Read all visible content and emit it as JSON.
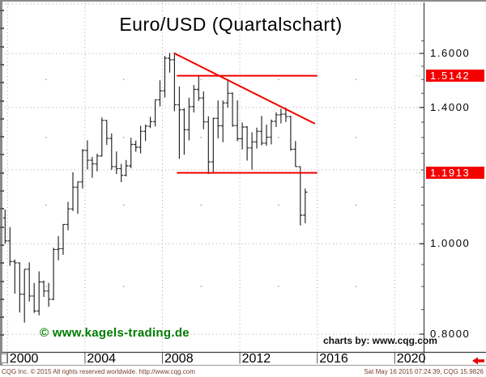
{
  "title": "Euro/USD (Quartalschart)",
  "watermark": "© www.kagels-trading.de",
  "credit": "charts by: www.cqg.com",
  "footer": {
    "left": "CQG Inc. © 2015 All rights reserved worldwide. http://www.cqg.com",
    "right": "Sat May 16 2015 07:24:39, CQG 15.9826"
  },
  "colors": {
    "annotation_red": "#f40000",
    "badge_bg": "#f40000",
    "badge_text": "#ffffff",
    "bar": "#222222",
    "grid": "#a6a6a6",
    "axis": "#3c3c3c",
    "watermark_green": "#007c00"
  },
  "y_axis": {
    "scale": "log",
    "labels": [
      {
        "price": 1.6,
        "text": "1.6000"
      },
      {
        "price": 1.4,
        "text": "1.4000"
      },
      {
        "price": 1.0,
        "text": "1.0000"
      },
      {
        "price": 0.8,
        "text": "0.8000"
      }
    ],
    "badges": [
      {
        "price": 1.5142,
        "text": "1.5142"
      },
      {
        "price": 1.1913,
        "text": "1.1913"
      }
    ]
  },
  "x_axis": {
    "labels": [
      {
        "year": 2000,
        "text": "2000"
      },
      {
        "year": 2004,
        "text": "2004"
      },
      {
        "year": 2008,
        "text": "2008"
      },
      {
        "year": 2012,
        "text": "2012"
      },
      {
        "year": 2016,
        "text": "2016"
      },
      {
        "year": 2020,
        "text": "2020"
      }
    ]
  },
  "grid": {
    "h_levels": [
      1.6,
      1.4,
      1.2,
      1.0,
      0.8
    ],
    "v_years": [
      2000,
      2004,
      2008,
      2012,
      2016,
      2020
    ],
    "minor_dot_levels": [
      1.5,
      1.3,
      1.1,
      0.9
    ],
    "minor_dot_years": [
      2002,
      2006,
      2010,
      2014,
      2018
    ]
  },
  "chart_data": {
    "type": "bar",
    "subtype": "ohlc",
    "title": "Euro/USD (Quartalschart)",
    "instrument": "Euro/USD",
    "periodicity": "quarterly",
    "y_scale": "log",
    "ylim": [
      0.78,
      1.67
    ],
    "xlim": [
      "1999Q3",
      "2020Q4"
    ],
    "legend": "none",
    "columns": [
      "quarter",
      "open",
      "high",
      "low",
      "close"
    ],
    "bars": [
      [
        "1999Q3",
        1.032,
        1.079,
        1.011,
        1.066
      ],
      [
        "1999Q4",
        1.066,
        1.088,
        1.0,
        1.007
      ],
      [
        "2000Q1",
        1.007,
        1.042,
        0.947,
        0.957
      ],
      [
        "2000Q2",
        0.957,
        0.962,
        0.884,
        0.954
      ],
      [
        "2000Q3",
        0.954,
        0.955,
        0.844,
        0.883
      ],
      [
        "2000Q4",
        0.883,
        0.939,
        0.823,
        0.939
      ],
      [
        "2001Q1",
        0.939,
        0.955,
        0.867,
        0.879
      ],
      [
        "2001Q2",
        0.879,
        0.908,
        0.843,
        0.847
      ],
      [
        "2001Q3",
        0.847,
        0.934,
        0.838,
        0.91
      ],
      [
        "2001Q4",
        0.91,
        0.913,
        0.877,
        0.89
      ],
      [
        "2002Q1",
        0.89,
        0.908,
        0.856,
        0.872
      ],
      [
        "2002Q2",
        0.872,
        0.99,
        0.87,
        0.986
      ],
      [
        "2002Q3",
        0.986,
        1.019,
        0.96,
        0.988
      ],
      [
        "2002Q4",
        0.988,
        1.05,
        0.973,
        1.049
      ],
      [
        "2003Q1",
        1.049,
        1.109,
        1.034,
        1.09
      ],
      [
        "2003Q2",
        1.09,
        1.193,
        1.084,
        1.15
      ],
      [
        "2003Q3",
        1.15,
        1.166,
        1.077,
        1.165
      ],
      [
        "2003Q4",
        1.165,
        1.263,
        1.146,
        1.259
      ],
      [
        "2004Q1",
        1.259,
        1.291,
        1.201,
        1.229
      ],
      [
        "2004Q2",
        1.229,
        1.239,
        1.177,
        1.218
      ],
      [
        "2004Q3",
        1.218,
        1.249,
        1.196,
        1.242
      ],
      [
        "2004Q4",
        1.242,
        1.366,
        1.24,
        1.356
      ],
      [
        "2005Q1",
        1.356,
        1.357,
        1.276,
        1.297
      ],
      [
        "2005Q2",
        1.297,
        1.313,
        1.2,
        1.21
      ],
      [
        "2005Q3",
        1.21,
        1.256,
        1.188,
        1.204
      ],
      [
        "2005Q4",
        1.204,
        1.218,
        1.164,
        1.184
      ],
      [
        "2006Q1",
        1.184,
        1.23,
        1.181,
        1.212
      ],
      [
        "2006Q2",
        1.212,
        1.299,
        1.205,
        1.278
      ],
      [
        "2006Q3",
        1.278,
        1.29,
        1.255,
        1.269
      ],
      [
        "2006Q4",
        1.269,
        1.338,
        1.25,
        1.32
      ],
      [
        "2007Q1",
        1.32,
        1.342,
        1.289,
        1.337
      ],
      [
        "2007Q2",
        1.337,
        1.368,
        1.331,
        1.352
      ],
      [
        "2007Q3",
        1.352,
        1.427,
        1.336,
        1.427
      ],
      [
        "2007Q4",
        1.427,
        1.497,
        1.404,
        1.459
      ],
      [
        "2008Q1",
        1.459,
        1.59,
        1.435,
        1.581
      ],
      [
        "2008Q2",
        1.581,
        1.602,
        1.526,
        1.575
      ],
      [
        "2008Q3",
        1.575,
        1.604,
        1.387,
        1.409
      ],
      [
        "2008Q4",
        1.409,
        1.475,
        1.233,
        1.392
      ],
      [
        "2009Q1",
        1.392,
        1.397,
        1.246,
        1.325
      ],
      [
        "2009Q2",
        1.325,
        1.434,
        1.291,
        1.403
      ],
      [
        "2009Q3",
        1.403,
        1.48,
        1.383,
        1.464
      ],
      [
        "2009Q4",
        1.464,
        1.514,
        1.423,
        1.433
      ],
      [
        "2010Q1",
        1.433,
        1.457,
        1.327,
        1.351
      ],
      [
        "2010Q2",
        1.351,
        1.37,
        1.188,
        1.224
      ],
      [
        "2010Q3",
        1.224,
        1.365,
        1.193,
        1.363
      ],
      [
        "2010Q4",
        1.363,
        1.424,
        1.297,
        1.338
      ],
      [
        "2011Q1",
        1.338,
        1.424,
        1.285,
        1.416
      ],
      [
        "2011Q2",
        1.416,
        1.494,
        1.399,
        1.45
      ],
      [
        "2011Q3",
        1.45,
        1.453,
        1.335,
        1.339
      ],
      [
        "2011Q4",
        1.339,
        1.425,
        1.288,
        1.296
      ],
      [
        "2012Q1",
        1.296,
        1.349,
        1.262,
        1.334
      ],
      [
        "2012Q2",
        1.334,
        1.337,
        1.228,
        1.267
      ],
      [
        "2012Q3",
        1.267,
        1.317,
        1.201,
        1.286
      ],
      [
        "2012Q4",
        1.286,
        1.332,
        1.265,
        1.32
      ],
      [
        "2013Q1",
        1.32,
        1.371,
        1.275,
        1.282
      ],
      [
        "2013Q2",
        1.282,
        1.342,
        1.274,
        1.301
      ],
      [
        "2013Q3",
        1.301,
        1.359,
        1.278,
        1.353
      ],
      [
        "2013Q4",
        1.353,
        1.383,
        1.334,
        1.375
      ],
      [
        "2014Q1",
        1.375,
        1.396,
        1.346,
        1.377
      ],
      [
        "2014Q2",
        1.377,
        1.399,
        1.351,
        1.369
      ],
      [
        "2014Q3",
        1.369,
        1.371,
        1.258,
        1.263
      ],
      [
        "2014Q4",
        1.263,
        1.289,
        1.21,
        1.21
      ],
      [
        "2015Q1",
        1.21,
        1.21,
        1.046,
        1.073
      ],
      [
        "2015Q2",
        1.073,
        1.146,
        1.052,
        1.136
      ]
    ],
    "annotations": [
      {
        "type": "trendline",
        "color": "#f40000",
        "from": {
          "quarter": "2008Q3",
          "price": 1.6
        },
        "to": {
          "quarter": "2015Q4",
          "price": 1.345
        }
      },
      {
        "type": "hline",
        "color": "#f40000",
        "price": 1.5142,
        "from": "2008Q4",
        "to": "2016Q1",
        "label": "1.5142"
      },
      {
        "type": "hline",
        "color": "#f40000",
        "price": 1.1913,
        "from": "2008Q4",
        "to": "2016Q1",
        "label": "1.1913"
      }
    ]
  }
}
